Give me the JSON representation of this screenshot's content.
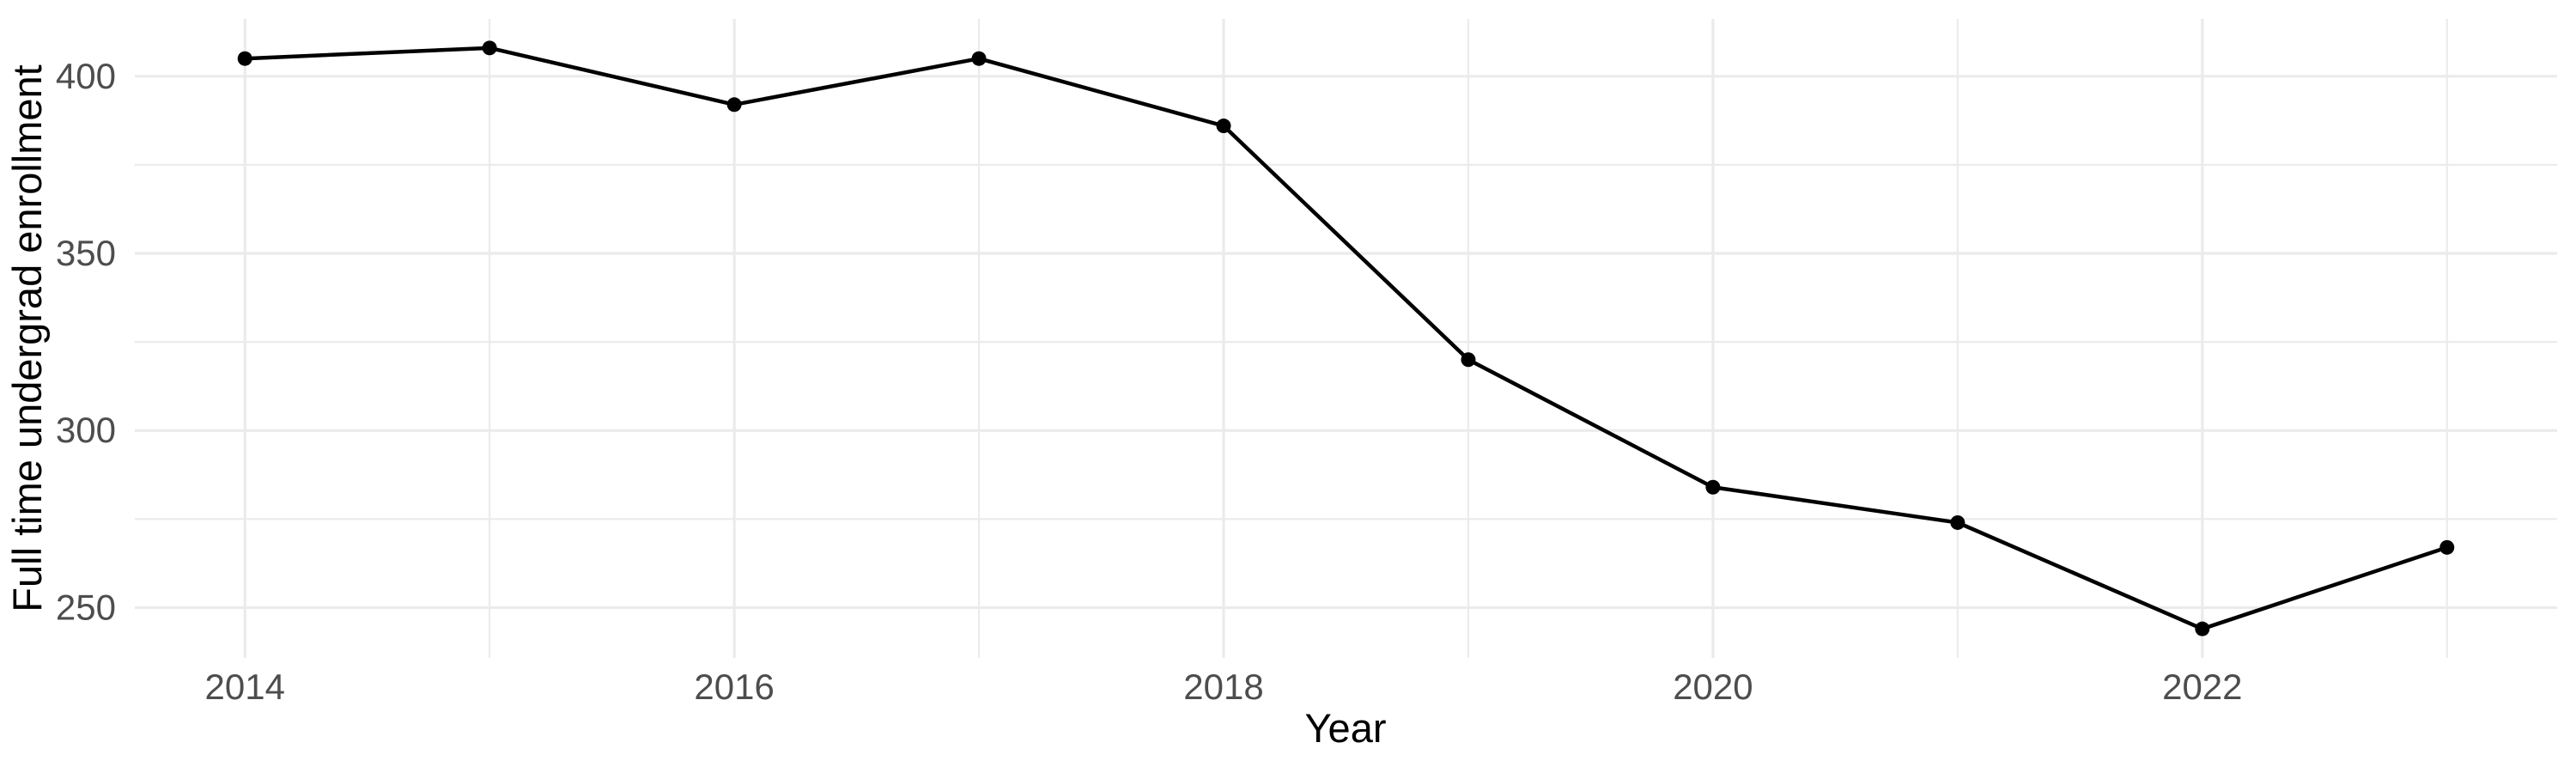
{
  "chart_data": {
    "type": "line",
    "title": "",
    "xlabel": "Year",
    "ylabel": "Full time undergrad enrollment",
    "x": [
      2014,
      2015,
      2016,
      2017,
      2018,
      2019,
      2020,
      2021,
      2022,
      2023
    ],
    "series": [
      {
        "name": "Full time undergrad enrollment",
        "values": [
          405,
          408,
          392,
          405,
          386,
          320,
          284,
          274,
          244,
          267
        ]
      }
    ],
    "x_tick_labels": [
      "2014",
      "2016",
      "2018",
      "2020",
      "2022"
    ],
    "x_major_ticks": [
      2014,
      2016,
      2018,
      2020,
      2022
    ],
    "x_minor_ticks": [
      2015,
      2017,
      2019,
      2021,
      2023
    ],
    "y_tick_labels": [
      "250",
      "300",
      "350",
      "400"
    ],
    "y_major_ticks": [
      250,
      300,
      350,
      400
    ],
    "y_minor_ticks": [
      275,
      325,
      375
    ],
    "xlim": [
      2013.55,
      2023.45
    ],
    "ylim": [
      235.8,
      416.2
    ],
    "grid": "on",
    "legend": "none",
    "colors": {
      "line": "#000000",
      "point": "#000000",
      "grid_major": "#EBEBEB",
      "grid_minor": "#EBEBEB",
      "axis_tick_text": "#4D4D4D",
      "axis_title_text": "#000000",
      "background": "#FFFFFF"
    }
  }
}
